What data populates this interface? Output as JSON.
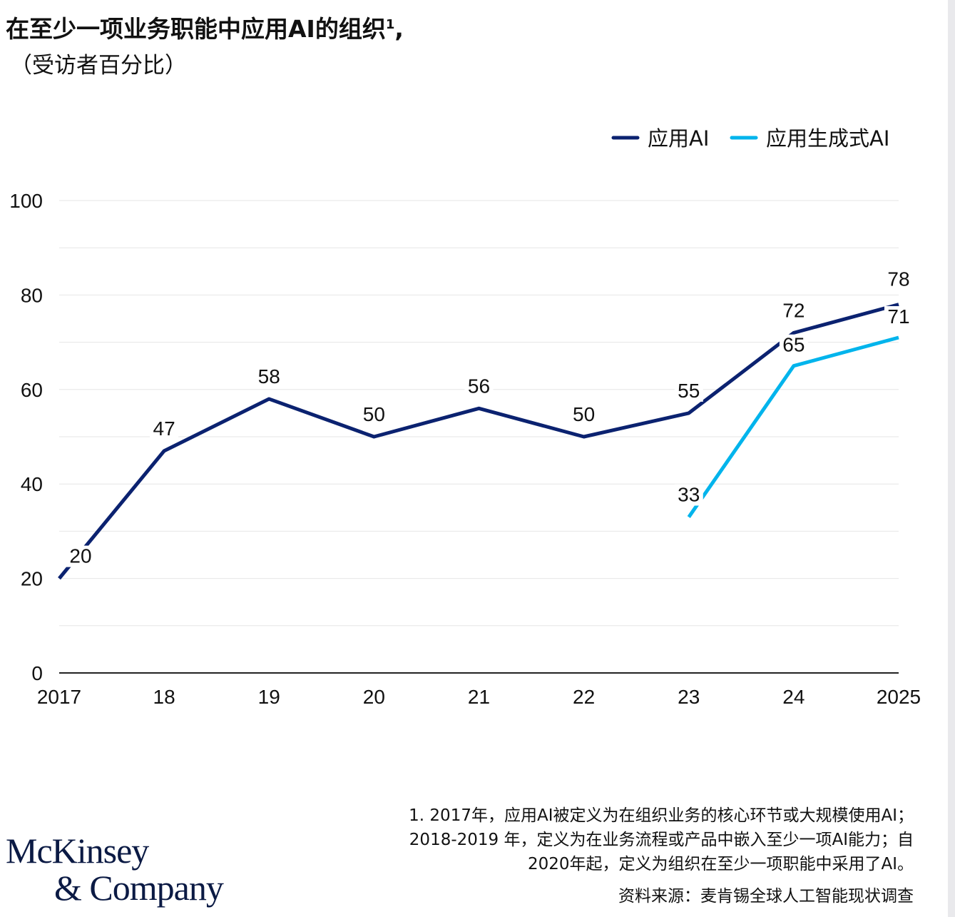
{
  "title": "在至少一项业务职能中应用AI的组织",
  "title_sup": "1",
  "title_suffix": ",",
  "subtitle": "（受访者百分比）",
  "chart_data": {
    "type": "line",
    "x": [
      "2017",
      "18",
      "19",
      "20",
      "21",
      "22",
      "23",
      "24",
      "2025"
    ],
    "series": [
      {
        "name": "应用AI",
        "color": "#0b2270",
        "values": [
          20,
          47,
          58,
          50,
          56,
          50,
          55,
          72,
          78
        ]
      },
      {
        "name": "应用生成式AI",
        "color": "#00b4ec",
        "values": [
          null,
          null,
          null,
          null,
          null,
          null,
          33,
          65,
          71
        ]
      }
    ],
    "yticks": [
      0,
      20,
      40,
      60,
      80,
      100
    ],
    "ylim": [
      0,
      100
    ],
    "grid": true,
    "legend": "top-right"
  },
  "footnote": "1.   2017年，应用AI被定义为在组织业务的核心环节或大规模使用AI；\n2018-2019 年，定义为在业务流程或产品中嵌入至少一项AI能力；自\n2020年起，定义为组织在至少一项职能中采用了AI。",
  "source": "资料来源：麦肯锡全球人工智能现状调查",
  "logo": {
    "line1": "McKinsey",
    "line2": "& Company"
  }
}
